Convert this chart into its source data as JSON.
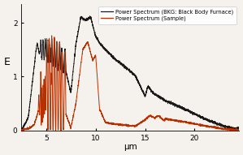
{
  "title": "",
  "xlabel": "μm",
  "ylabel": "E",
  "xlim": [
    2.5,
    24.5
  ],
  "ylim": [
    0,
    2.35
  ],
  "yticks": [
    0,
    1,
    2
  ],
  "xticks": [
    5,
    10,
    15,
    20
  ],
  "legend_bkg_label": "Power Spectrum (BKG: Black Body Furnace)",
  "legend_sample_label": "Power Spectrum (Sample)",
  "bkg_color": "#1a1a1a",
  "sample_color": "#b83000",
  "background_color": "#f5f2ed"
}
